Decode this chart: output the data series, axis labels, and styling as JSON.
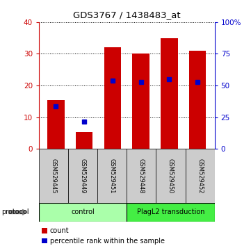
{
  "title": "GDS3767 / 1438483_at",
  "samples": [
    "GSM529445",
    "GSM529449",
    "GSM529451",
    "GSM529448",
    "GSM529450",
    "GSM529452"
  ],
  "counts": [
    15.5,
    5.2,
    32.0,
    30.0,
    35.0,
    31.0
  ],
  "percentile_ranks": [
    13.5,
    8.5,
    21.5,
    21.0,
    22.0,
    21.0
  ],
  "bar_color": "#cc0000",
  "dot_color": "#0000cc",
  "ylim_left": [
    0,
    40
  ],
  "ylim_right": [
    0,
    100
  ],
  "yticks_left": [
    0,
    10,
    20,
    30,
    40
  ],
  "yticks_right": [
    0,
    25,
    50,
    75,
    100
  ],
  "ytick_labels_right": [
    "0",
    "25",
    "50",
    "75",
    "100%"
  ],
  "groups": [
    {
      "label": "control",
      "start": 0,
      "end": 3,
      "color": "#aaffaa"
    },
    {
      "label": "PlagL2 transduction",
      "start": 3,
      "end": 6,
      "color": "#44ee44"
    }
  ],
  "protocol_label": "protocol",
  "legend_count_label": "count",
  "legend_percentile_label": "percentile rank within the sample",
  "bg_color": "#ffffff",
  "tick_label_color_left": "#cc0000",
  "tick_label_color_right": "#0000cc",
  "sample_bg_color": "#cccccc"
}
